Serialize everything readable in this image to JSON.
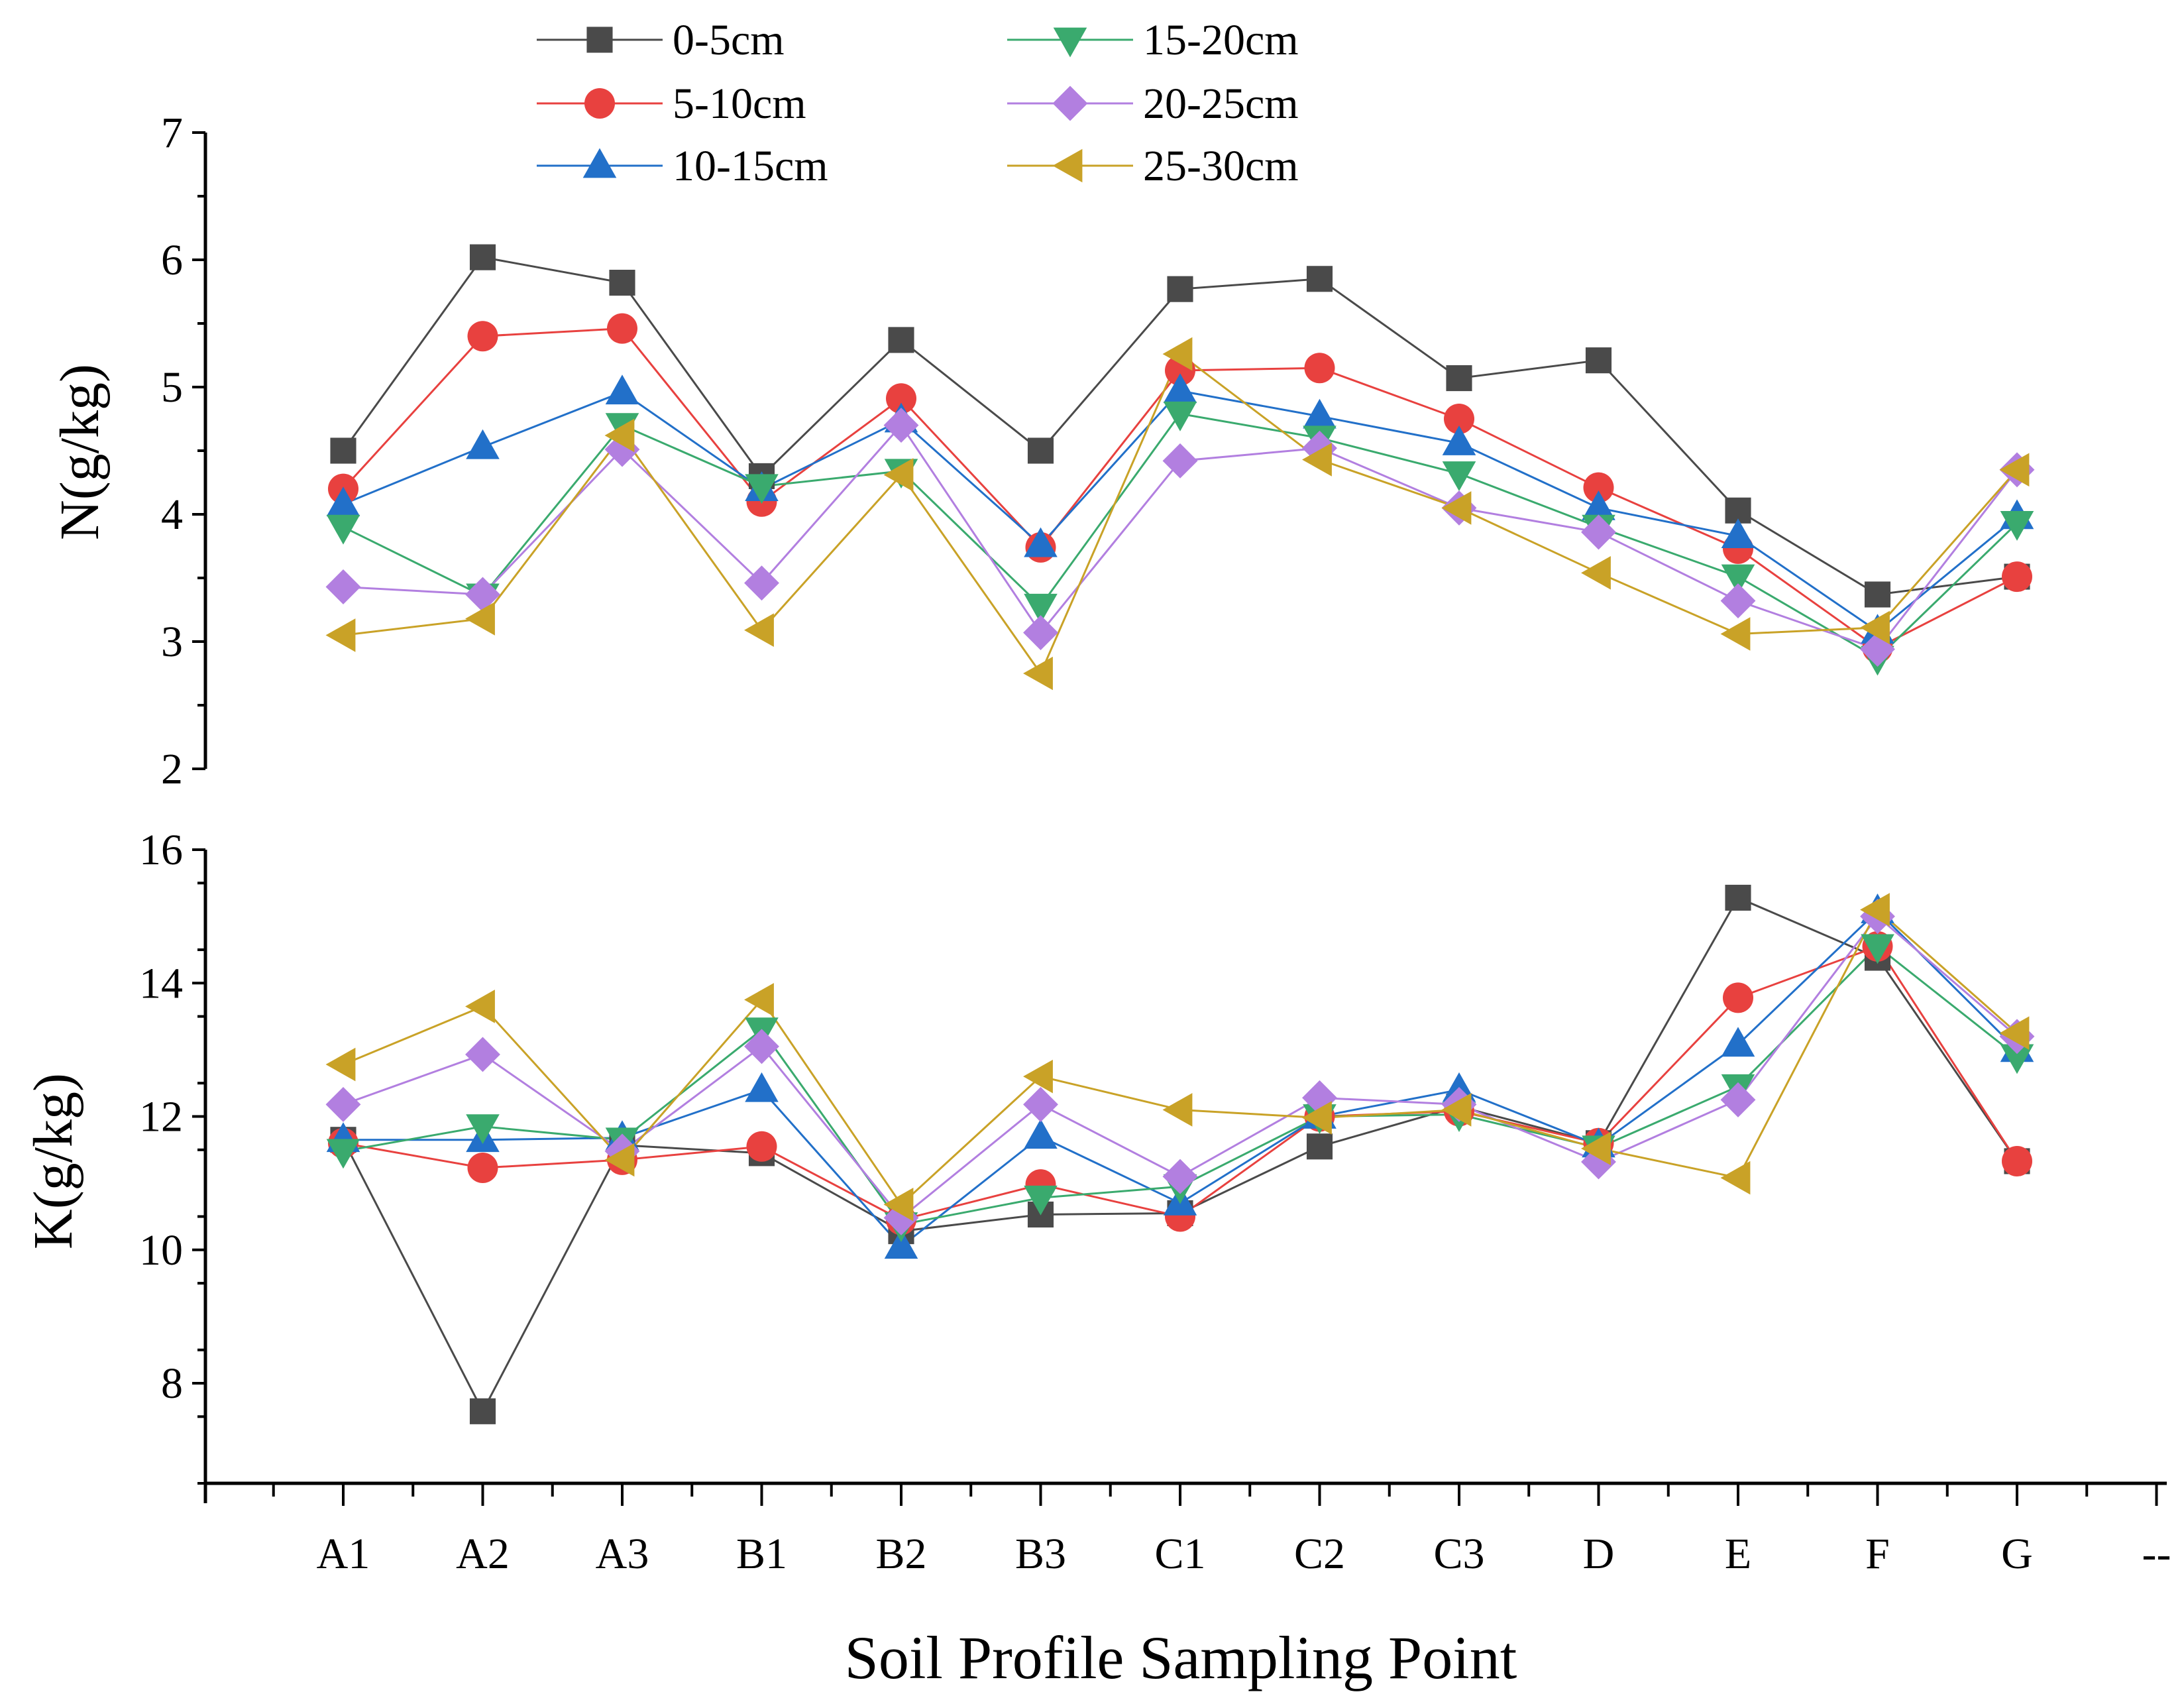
{
  "chart_data": [
    {
      "type": "line",
      "panel": "top",
      "ylabel": "N(g/kg)",
      "ylim": [
        2,
        7
      ],
      "yticks": [
        2,
        3,
        4,
        5,
        6,
        7
      ],
      "categories": [
        "A1",
        "A2",
        "A3",
        "B1",
        "B2",
        "B3",
        "C1",
        "C2",
        "C3",
        "D",
        "E",
        "F",
        "G"
      ],
      "series": [
        {
          "name": "0-5cm",
          "color": "#4a4a4a",
          "marker": "square",
          "values": [
            4.5,
            6.02,
            5.82,
            4.3,
            5.37,
            4.5,
            5.77,
            5.85,
            5.07,
            5.21,
            4.03,
            3.37,
            3.51
          ]
        },
        {
          "name": "5-10cm",
          "color": "#e8413f",
          "marker": "circle",
          "values": [
            4.2,
            5.4,
            5.46,
            4.1,
            4.91,
            3.74,
            5.13,
            5.15,
            4.75,
            4.21,
            3.73,
            2.95,
            3.51
          ]
        },
        {
          "name": "10-15cm",
          "color": "#2270c9",
          "marker": "triangle-up",
          "values": [
            4.08,
            4.53,
            4.96,
            4.2,
            4.74,
            3.76,
            4.97,
            4.77,
            4.56,
            4.05,
            3.83,
            3.08,
            3.98
          ]
        },
        {
          "name": "15-20cm",
          "color": "#3aaa6e",
          "marker": "triangle-down",
          "values": [
            3.9,
            3.36,
            4.7,
            4.22,
            4.34,
            3.28,
            4.79,
            4.6,
            4.32,
            3.9,
            3.51,
            2.87,
            3.93
          ]
        },
        {
          "name": "20-25cm",
          "color": "#b27fe0",
          "marker": "diamond",
          "values": [
            3.43,
            3.37,
            4.51,
            3.46,
            4.7,
            3.07,
            4.42,
            4.52,
            4.05,
            3.86,
            3.32,
            2.94,
            4.35
          ]
        },
        {
          "name": "25-30cm",
          "color": "#c9a227",
          "marker": "triangle-left",
          "values": [
            3.05,
            3.18,
            4.62,
            3.09,
            4.31,
            2.75,
            5.26,
            4.43,
            4.05,
            3.54,
            3.06,
            3.11,
            4.35
          ]
        }
      ]
    },
    {
      "type": "line",
      "panel": "bottom",
      "ylabel": "K(g/kg)",
      "xlabel": "Soil Profile Sampling Point",
      "ylim": [
        6.5,
        16
      ],
      "yticks": [
        8,
        10,
        12,
        14,
        16
      ],
      "categories": [
        "A1",
        "A2",
        "A3",
        "B1",
        "B2",
        "B3",
        "C1",
        "C2",
        "C3",
        "D",
        "E",
        "F",
        "G"
      ],
      "x_tick_labels": [
        "A1",
        "A2",
        "A3",
        "B1",
        "B2",
        "B3",
        "C1",
        "C2",
        "C3",
        "D",
        "E",
        "F",
        "G",
        "--"
      ],
      "series": [
        {
          "name": "0-5cm",
          "color": "#4a4a4a",
          "marker": "square",
          "values": [
            11.65,
            7.58,
            11.57,
            11.45,
            10.28,
            10.53,
            10.55,
            11.55,
            12.15,
            11.6,
            15.28,
            14.38,
            11.33
          ]
        },
        {
          "name": "5-10cm",
          "color": "#e8413f",
          "marker": "circle",
          "values": [
            11.6,
            11.23,
            11.35,
            11.55,
            10.45,
            10.98,
            10.5,
            12.0,
            12.08,
            11.6,
            13.78,
            14.55,
            11.33
          ]
        },
        {
          "name": "10-15cm",
          "color": "#2270c9",
          "marker": "triangle-up",
          "values": [
            11.65,
            11.65,
            11.68,
            12.4,
            10.05,
            11.7,
            10.7,
            12.0,
            12.4,
            11.57,
            13.08,
            15.08,
            13.0
          ]
        },
        {
          "name": "15-20cm",
          "color": "#3aaa6e",
          "marker": "triangle-down",
          "values": [
            11.48,
            11.85,
            11.65,
            13.3,
            10.38,
            10.78,
            10.95,
            12.0,
            12.03,
            11.53,
            12.45,
            14.55,
            12.9
          ]
        },
        {
          "name": "20-25cm",
          "color": "#b27fe0",
          "marker": "diamond",
          "values": [
            12.18,
            12.93,
            11.48,
            13.05,
            10.48,
            12.18,
            11.1,
            12.28,
            12.18,
            11.32,
            12.25,
            15.0,
            13.2
          ]
        },
        {
          "name": "25-30cm",
          "color": "#c9a227",
          "marker": "triangle-left",
          "values": [
            12.78,
            13.65,
            11.35,
            13.75,
            10.68,
            12.6,
            12.1,
            11.98,
            12.1,
            11.52,
            11.08,
            15.1,
            13.25
          ]
        }
      ]
    }
  ],
  "legend_labels": [
    "0-5cm",
    "5-10cm",
    "10-15cm",
    "15-20cm",
    "20-25cm",
    "25-30cm"
  ]
}
